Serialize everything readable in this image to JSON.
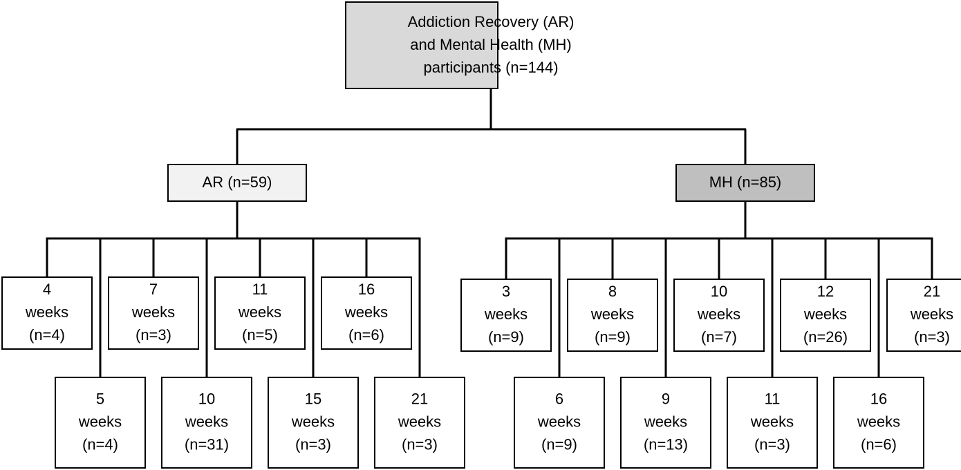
{
  "root": {
    "lines": [
      "Addiction Recovery (AR)",
      "and Mental Health (MH)",
      "participants (n=144)"
    ]
  },
  "groups": [
    {
      "label": "AR (n=59)",
      "children": [
        [
          "4",
          "weeks",
          "(n=4)"
        ],
        [
          "5",
          "weeks",
          "(n=4)"
        ],
        [
          "7",
          "weeks",
          "(n=3)"
        ],
        [
          "10",
          "weeks",
          "(n=31)"
        ],
        [
          "11",
          "weeks",
          "(n=5)"
        ],
        [
          "15",
          "weeks",
          "(n=3)"
        ],
        [
          "16",
          "weeks",
          "(n=6)"
        ],
        [
          "21",
          "weeks",
          "(n=3)"
        ]
      ]
    },
    {
      "label": "MH (n=85)",
      "children": [
        [
          "3",
          "weeks",
          "(n=9)"
        ],
        [
          "6",
          "weeks",
          "(n=9)"
        ],
        [
          "8",
          "weeks",
          "(n=9)"
        ],
        [
          "9",
          "weeks",
          "(n=13)"
        ],
        [
          "10",
          "weeks",
          "(n=7)"
        ],
        [
          "11",
          "weeks",
          "(n=3)"
        ],
        [
          "12",
          "weeks",
          "(n=26)"
        ],
        [
          "16",
          "weeks",
          "(n=6)"
        ],
        [
          "21",
          "weeks",
          "(n=3)"
        ]
      ]
    }
  ]
}
